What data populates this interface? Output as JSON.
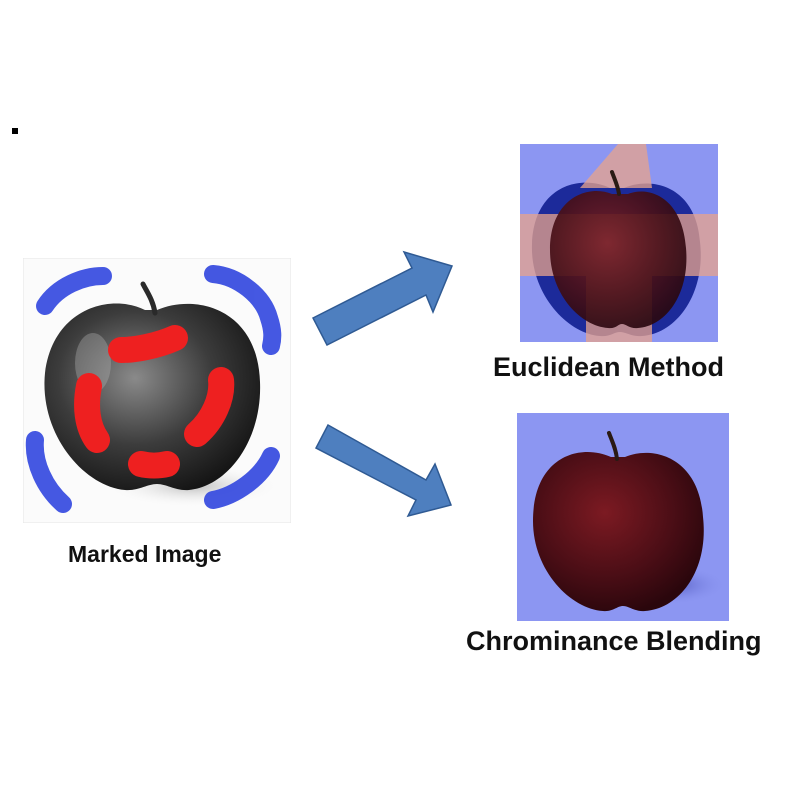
{
  "diagram": {
    "panels": [
      {
        "id": "marked",
        "caption": "Marked Image"
      },
      {
        "id": "euclidean",
        "caption": "Euclidean Method"
      },
      {
        "id": "chrominance",
        "caption": "Chrominance Blending"
      }
    ],
    "arrows": [
      {
        "from": "marked",
        "to": "euclidean"
      },
      {
        "from": "marked",
        "to": "chrominance"
      }
    ]
  },
  "colors": {
    "arrow_fill": "#4e7fbf",
    "arrow_stroke": "#2f5a93",
    "mark_blue": "#3b4fe0",
    "mark_red": "#ee2020",
    "background_tint": "#8c96f2",
    "apple_red": "#5a1218",
    "overlay_peach": "#e8a48c"
  }
}
